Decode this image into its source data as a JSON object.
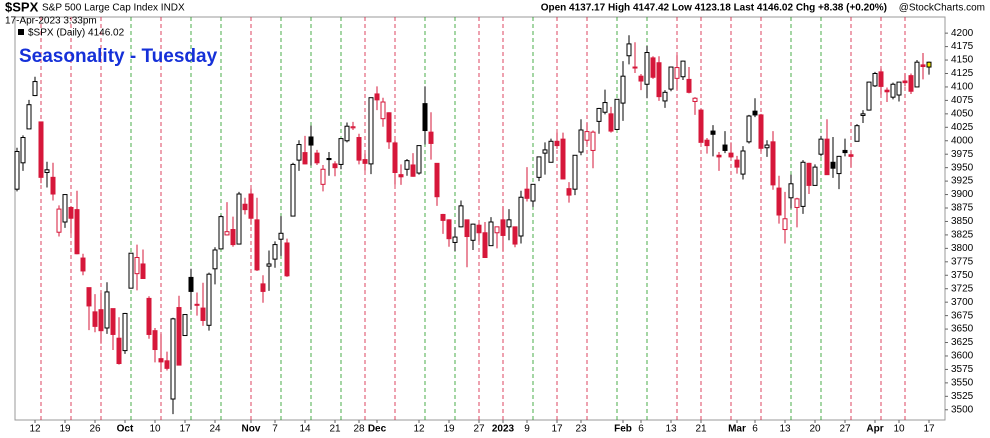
{
  "chart_data": {
    "type": "candlestick",
    "symbol": "$SPX",
    "description": "S&P 500 Large Cap Index INDX",
    "timestamp": "17-Apr-2023 3:33pm",
    "quote": "Open 4137.17 High 4147.42 Low 4123.18 Last 4146.02 Chg +8.38 (+0.20%)",
    "source": "@StockCharts.com",
    "legend": "$SPX (Daily) 4146.02",
    "title": "Seasonality - Tuesday",
    "up_color": "#000000",
    "down_color": "#d6173a",
    "last_color": "#f2e600",
    "tuesday_up_color": "#1f9a1f",
    "tuesday_down_color": "#d6173a",
    "grid": true,
    "ylim": [
      3481,
      4230
    ],
    "yticks": [
      3500,
      3525,
      3550,
      3575,
      3600,
      3625,
      3650,
      3675,
      3700,
      3725,
      3750,
      3775,
      3800,
      3825,
      3850,
      3875,
      3900,
      3925,
      3950,
      3975,
      4000,
      4025,
      4050,
      4075,
      4100,
      4125,
      4150,
      4175,
      4200
    ],
    "categories": [
      null,
      null,
      null,
      "12",
      null,
      null,
      null,
      null,
      "19",
      null,
      null,
      null,
      null,
      "26",
      null,
      null,
      null,
      null,
      "Oct",
      null,
      null,
      null,
      null,
      "10",
      null,
      null,
      null,
      null,
      "17",
      null,
      null,
      null,
      null,
      "24",
      null,
      null,
      null,
      null,
      null,
      "Nov",
      null,
      null,
      null,
      "7",
      null,
      null,
      null,
      null,
      "14",
      null,
      null,
      null,
      null,
      "21",
      null,
      null,
      null,
      "28",
      null,
      null,
      "Dec",
      null,
      null,
      null,
      null,
      null,
      null,
      "12",
      null,
      null,
      null,
      null,
      "19",
      null,
      null,
      null,
      null,
      "27",
      null,
      null,
      null,
      "2023",
      null,
      null,
      null,
      "9",
      null,
      null,
      null,
      null,
      "17",
      null,
      null,
      null,
      "23",
      null,
      null,
      null,
      null,
      null,
      null,
      "Feb",
      null,
      null,
      "6",
      null,
      null,
      null,
      null,
      "13",
      null,
      null,
      null,
      null,
      "21",
      null,
      null,
      null,
      null,
      null,
      "Mar",
      null,
      null,
      "6",
      null,
      null,
      null,
      null,
      "13",
      null,
      null,
      null,
      null,
      "20",
      null,
      null,
      null,
      null,
      "27",
      null,
      null,
      null,
      null,
      "Apr",
      null,
      null,
      null,
      "10",
      null,
      null,
      null,
      null,
      "17"
    ],
    "ohlc": [
      [
        3910,
        3987,
        3906,
        3980
      ],
      [
        3959,
        4010,
        3944,
        4006
      ],
      [
        4022,
        4076,
        4022,
        4067
      ],
      [
        4084,
        4119,
        4083,
        4110
      ],
      [
        4035,
        4035,
        3921,
        3932
      ],
      [
        3941,
        3961,
        3913,
        3946
      ],
      [
        3932,
        3959,
        3889,
        3901
      ],
      [
        3830,
        3880,
        3822,
        3873
      ],
      [
        3849,
        3900,
        3838,
        3900
      ],
      [
        3876,
        3878,
        3827,
        3856
      ],
      [
        3872,
        3907,
        3789,
        3790
      ],
      [
        3782,
        3790,
        3750,
        3758
      ],
      [
        3727,
        3727,
        3648,
        3693
      ],
      [
        3682,
        3715,
        3644,
        3655
      ],
      [
        3686,
        3717,
        3623,
        3647
      ],
      [
        3652,
        3737,
        3641,
        3719
      ],
      [
        3688,
        3688,
        3611,
        3640
      ],
      [
        3633,
        3672,
        3584,
        3586
      ],
      [
        3610,
        3680,
        3604,
        3679
      ],
      [
        3726,
        3791,
        3726,
        3791
      ],
      [
        3753,
        3807,
        3722,
        3783
      ],
      [
        3771,
        3798,
        3743,
        3744
      ],
      [
        3707,
        3711,
        3632,
        3640
      ],
      [
        3647,
        3652,
        3588,
        3612
      ],
      [
        3595,
        3641,
        3570,
        3589
      ],
      [
        3591,
        3608,
        3573,
        3577
      ],
      [
        3520,
        3671,
        3492,
        3669
      ],
      [
        3690,
        3712,
        3583,
        3583
      ],
      [
        3638,
        3677,
        3638,
        3677
      ],
      [
        3746,
        3762,
        3686,
        3720
      ],
      [
        3696,
        3718,
        3675,
        3695
      ],
      [
        3689,
        3736,
        3656,
        3666
      ],
      [
        3657,
        3755,
        3647,
        3752
      ],
      [
        3762,
        3802,
        3733,
        3797
      ],
      [
        3799,
        3862,
        3799,
        3859
      ],
      [
        3825,
        3886,
        3824,
        3831
      ],
      [
        3835,
        3859,
        3803,
        3807
      ],
      [
        3808,
        3905,
        3808,
        3901
      ],
      [
        3882,
        3894,
        3863,
        3872
      ],
      [
        3901,
        3911,
        3844,
        3856
      ],
      [
        3853,
        3894,
        3758,
        3760
      ],
      [
        3734,
        3750,
        3699,
        3720
      ],
      [
        3767,
        3796,
        3721,
        3771
      ],
      [
        3780,
        3813,
        3764,
        3807
      ],
      [
        3817,
        3860,
        3786,
        3828
      ],
      [
        3810,
        3818,
        3747,
        3749
      ],
      [
        3860,
        3959,
        3860,
        3956
      ],
      [
        3964,
        4001,
        3944,
        3993
      ],
      [
        3978,
        4009,
        3956,
        3957
      ],
      [
        4007,
        4028,
        3954,
        3992
      ],
      [
        3977,
        3983,
        3955,
        3959
      ],
      [
        3919,
        3955,
        3906,
        3947
      ],
      [
        3967,
        3979,
        3935,
        3965
      ],
      [
        3957,
        3962,
        3934,
        3950
      ],
      [
        3956,
        4004,
        3947,
        4004
      ],
      [
        4000,
        4034,
        3997,
        4027
      ],
      [
        4024,
        4035,
        4020,
        4026
      ],
      [
        4006,
        4013,
        3956,
        3964
      ],
      [
        3965,
        3976,
        3944,
        3958
      ],
      [
        3957,
        4080,
        3938,
        4080
      ],
      [
        4087,
        4101,
        4057,
        4076
      ],
      [
        4041,
        4080,
        4026,
        4072
      ],
      [
        4052,
        4053,
        3985,
        3998
      ],
      [
        3996,
        4001,
        3918,
        3941
      ],
      [
        3937,
        3956,
        3918,
        3933
      ],
      [
        3947,
        3966,
        3935,
        3963
      ],
      [
        3955,
        3977,
        3933,
        3934
      ],
      [
        3940,
        3991,
        3937,
        3991
      ],
      [
        4069,
        4101,
        3993,
        4019
      ],
      [
        4016,
        4053,
        3965,
        3995
      ],
      [
        3958,
        3958,
        3879,
        3896
      ],
      [
        3863,
        3864,
        3827,
        3852
      ],
      [
        3853,
        3854,
        3803,
        3818
      ],
      [
        3811,
        3839,
        3795,
        3821
      ],
      [
        3840,
        3889,
        3839,
        3879
      ],
      [
        3853,
        3853,
        3765,
        3822
      ],
      [
        3815,
        3846,
        3797,
        3845
      ],
      [
        3843,
        3846,
        3813,
        3829
      ],
      [
        3829,
        3849,
        3783,
        3783
      ],
      [
        3805,
        3858,
        3805,
        3849
      ],
      [
        3829,
        3840,
        3800,
        3840
      ],
      [
        3853,
        3878,
        3795,
        3824
      ],
      [
        3840,
        3873,
        3815,
        3853
      ],
      [
        3840,
        3840,
        3802,
        3808
      ],
      [
        3823,
        3907,
        3809,
        3895
      ],
      [
        3910,
        3951,
        3887,
        3893
      ],
      [
        3888,
        3919,
        3877,
        3919
      ],
      [
        3932,
        3970,
        3925,
        3970
      ],
      [
        3977,
        3997,
        3937,
        3983
      ],
      [
        3960,
        4004,
        3960,
        3999
      ],
      [
        3999,
        4015,
        3985,
        3991
      ],
      [
        4003,
        4015,
        3928,
        3929
      ],
      [
        3911,
        3923,
        3885,
        3899
      ],
      [
        3910,
        3973,
        3899,
        3973
      ],
      [
        3979,
        4040,
        3973,
        4020
      ],
      [
        4001,
        4033,
        3993,
        4017
      ],
      [
        3982,
        4019,
        3949,
        4016
      ],
      [
        4036,
        4061,
        4013,
        4060
      ],
      [
        4053,
        4095,
        4049,
        4071
      ],
      [
        4050,
        4063,
        4015,
        4018
      ],
      [
        4021,
        4077,
        4021,
        4077
      ],
      [
        4070,
        4148,
        4037,
        4120
      ],
      [
        4158,
        4196,
        4142,
        4180
      ],
      [
        4137,
        4183,
        4126,
        4136
      ],
      [
        4120,
        4124,
        4094,
        4111
      ],
      [
        4105,
        4176,
        4079,
        4164
      ],
      [
        4154,
        4157,
        4115,
        4118
      ],
      [
        4145,
        4157,
        4074,
        4082
      ],
      [
        4074,
        4094,
        4061,
        4090
      ],
      [
        4096,
        4138,
        4092,
        4137
      ],
      [
        4116,
        4159,
        4095,
        4136
      ],
      [
        4119,
        4149,
        4113,
        4148
      ],
      [
        4114,
        4137,
        4088,
        4090
      ],
      [
        4073,
        4081,
        4048,
        4079
      ],
      [
        4057,
        4059,
        3997,
        3997
      ],
      [
        4001,
        4005,
        3976,
        3991
      ],
      [
        4018,
        4029,
        3971,
        4012
      ],
      [
        3973,
        3979,
        3944,
        3970
      ],
      [
        3992,
        4018,
        3977,
        3982
      ],
      [
        3977,
        3997,
        3968,
        3970
      ],
      [
        3964,
        3972,
        3939,
        3951
      ],
      [
        3938,
        3990,
        3928,
        3981
      ],
      [
        3998,
        4048,
        3995,
        4046
      ],
      [
        4055,
        4079,
        4044,
        4048
      ],
      [
        4048,
        4050,
        3980,
        3986
      ],
      [
        3987,
        4001,
        3970,
        3992
      ],
      [
        3998,
        4018,
        3909,
        3918
      ],
      [
        3912,
        3935,
        3846,
        3862
      ],
      [
        3835,
        3905,
        3809,
        3855
      ],
      [
        3894,
        3937,
        3874,
        3920
      ],
      [
        3876,
        3894,
        3839,
        3892
      ],
      [
        3878,
        3964,
        3864,
        3960
      ],
      [
        3958,
        3959,
        3901,
        3917
      ],
      [
        3917,
        3956,
        3917,
        3951
      ],
      [
        3975,
        4009,
        3971,
        4003
      ],
      [
        4003,
        4040,
        3937,
        3937
      ],
      [
        3960,
        4007,
        3931,
        3949
      ],
      [
        3939,
        3972,
        3910,
        3971
      ],
      [
        3982,
        4004,
        3971,
        3978
      ],
      [
        3974,
        3980,
        3951,
        3971
      ],
      [
        3999,
        4031,
        3999,
        4028
      ],
      [
        4047,
        4057,
        4033,
        4050
      ],
      [
        4057,
        4110,
        4056,
        4109
      ],
      [
        4102,
        4128,
        4100,
        4125
      ],
      [
        4128,
        4134,
        4086,
        4101
      ],
      [
        4094,
        4099,
        4072,
        4091
      ],
      [
        4081,
        4108,
        4077,
        4105
      ],
      [
        4085,
        4109,
        4073,
        4109
      ],
      [
        4111,
        4125,
        4101,
        4108
      ],
      [
        4121,
        4125,
        4087,
        4092
      ],
      [
        4100,
        4150,
        4100,
        4146
      ],
      [
        4141,
        4163,
        4114,
        4138
      ],
      [
        4137,
        4147,
        4123,
        4146
      ]
    ]
  }
}
